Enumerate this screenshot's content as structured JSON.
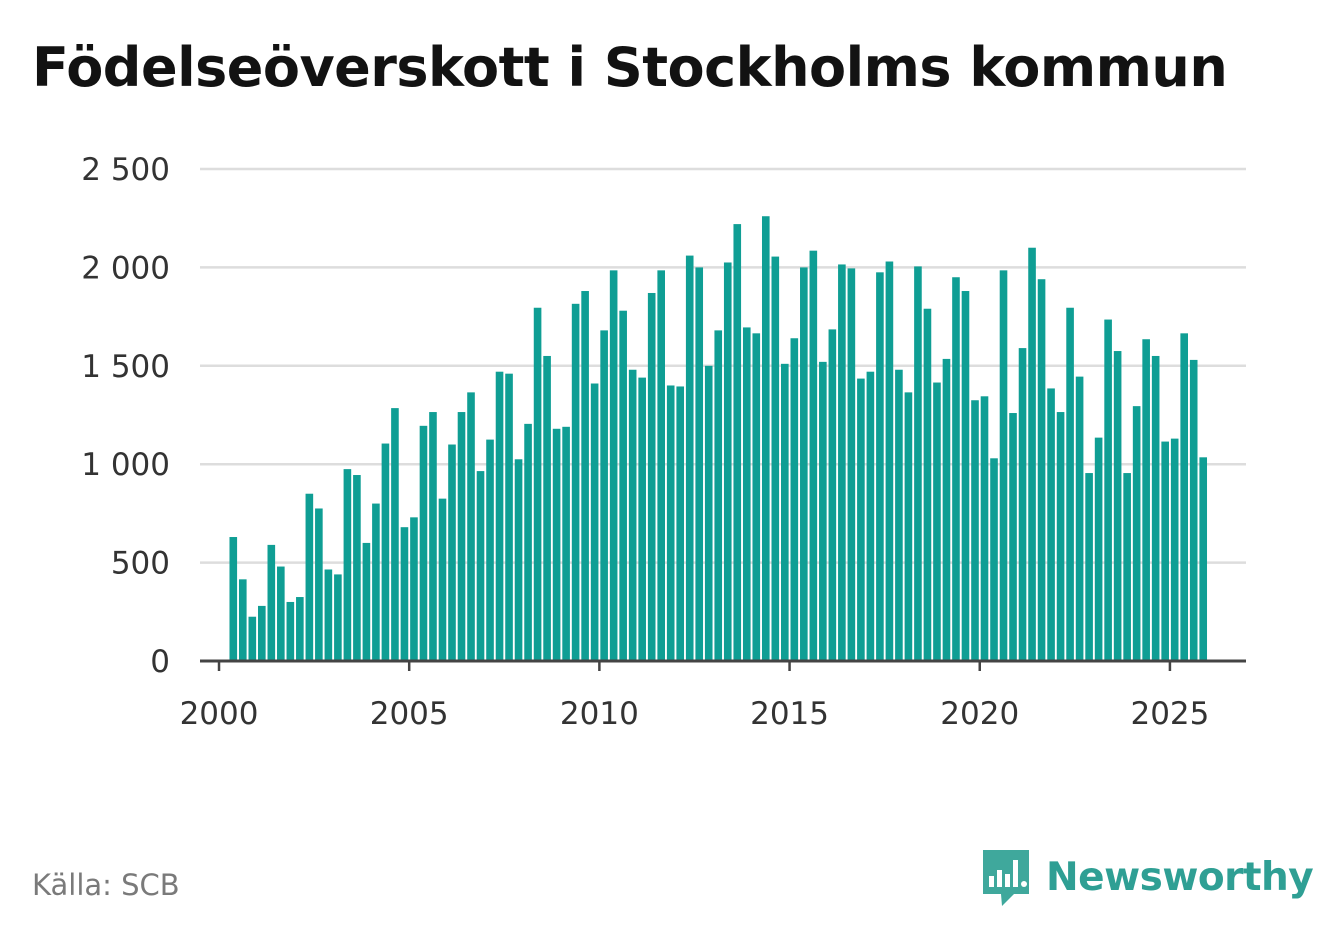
{
  "title": "Födelseöverskott i Stockholms kommun",
  "source": "Källa: SCB",
  "brand": {
    "name": "Newsworthy",
    "icon": "bar-chart-speech-bubble-icon",
    "color": "#2f9f94"
  },
  "colors": {
    "bar": "#0f9e94",
    "grid": "#dddddd",
    "axis": "#444444",
    "label": "#333333"
  },
  "chart_data": {
    "type": "bar",
    "title": "Födelseöverskott i Stockholms kommun",
    "xlabel": "",
    "ylabel": "",
    "frequency": "quarterly",
    "ylim": [
      0,
      2500
    ],
    "xlim": [
      1999.5,
      2027.0
    ],
    "yticks": [
      0,
      500,
      1000,
      1500,
      2000,
      2500
    ],
    "ytick_labels": [
      "0",
      "500",
      "1 000",
      "1 500",
      "2 000",
      "2 500"
    ],
    "xticks": [
      2000,
      2005,
      2010,
      2015,
      2020,
      2025
    ],
    "xtick_labels": [
      "2000",
      "2005",
      "2010",
      "2015",
      "2020",
      "2025"
    ],
    "grid": true,
    "legend": "none",
    "start": {
      "year": 2000,
      "quarter": 1
    },
    "values": [
      -5,
      630,
      415,
      225,
      280,
      590,
      480,
      300,
      325,
      850,
      775,
      465,
      440,
      975,
      945,
      600,
      800,
      1105,
      1285,
      680,
      730,
      1195,
      1265,
      825,
      1100,
      1265,
      1365,
      965,
      1125,
      1470,
      1460,
      1025,
      1205,
      1795,
      1550,
      1180,
      1190,
      1815,
      1880,
      1410,
      1680,
      1985,
      1780,
      1480,
      1440,
      1870,
      1985,
      1400,
      1395,
      2060,
      2000,
      1500,
      1680,
      2025,
      2220,
      1695,
      1665,
      2260,
      2055,
      1510,
      1640,
      2000,
      2085,
      1520,
      1685,
      2015,
      1995,
      1435,
      1470,
      1975,
      2030,
      1480,
      1365,
      2005,
      1790,
      1415,
      1535,
      1950,
      1880,
      1325,
      1345,
      1030,
      1985,
      1260,
      1590,
      2100,
      1940,
      1385,
      1265,
      1795,
      1445,
      955,
      1135,
      1735,
      1575,
      955,
      1295,
      1635,
      1550,
      1115,
      1130,
      1665,
      1530,
      1035
    ]
  }
}
